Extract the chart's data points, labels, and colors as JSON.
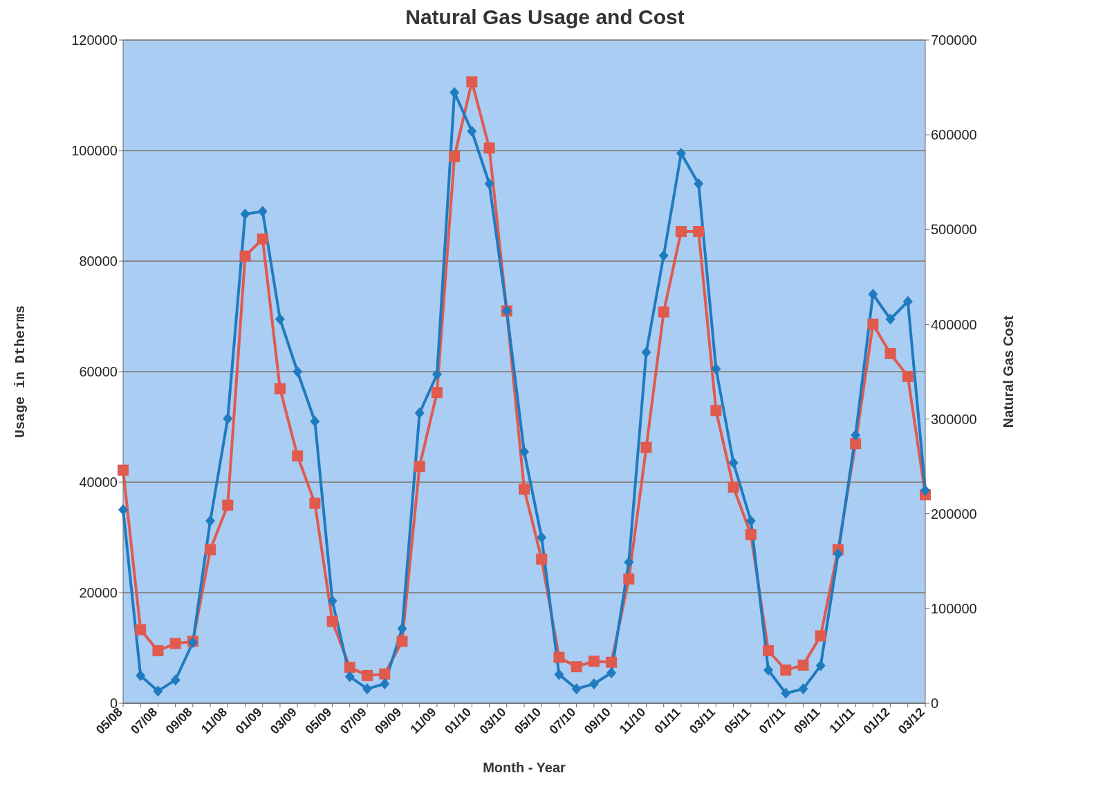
{
  "chart_data": {
    "type": "line",
    "title": "Natural Gas Usage and Cost",
    "xlabel": "Month - Year",
    "ylabel": "Usage in Dtherms",
    "y2label": "Natural Gas Cost",
    "categories": [
      "05/08",
      null,
      "07/08",
      null,
      "09/08",
      null,
      "11/08",
      null,
      "01/09",
      null,
      "03/09",
      null,
      "05/09",
      null,
      "07/09",
      null,
      "09/09",
      null,
      "11/09",
      null,
      "01/10",
      null,
      "03/10",
      null,
      "05/10",
      null,
      "07/10",
      null,
      "09/10",
      null,
      "11/10",
      null,
      "01/11",
      null,
      "03/11",
      null,
      "05/11",
      null,
      "07/11",
      null,
      "09/11",
      null,
      "11/11",
      null,
      "01/12",
      null,
      "03/12"
    ],
    "series": [
      {
        "color": "#1f7bbf",
        "marker": "diamond",
        "values": [
          35000,
          5000,
          2200,
          4200,
          11000,
          33000,
          51500,
          88500,
          89000,
          69500,
          60000,
          51000,
          18500,
          4800,
          2600,
          3500,
          13500,
          52500,
          59500,
          110500,
          103500,
          94000,
          71000,
          45500,
          30000,
          5200,
          2600,
          3500,
          5500,
          25500,
          63500,
          81000,
          99500,
          94000,
          60500,
          43500,
          33000,
          6000,
          1800,
          2600,
          6800,
          27000,
          48500,
          74000,
          69500,
          72700,
          38500
        ]
      },
      {
        "color": "#e05a4e",
        "marker": "square",
        "axis": "y2",
        "values": [
          246000,
          77600,
          55400,
          63000,
          65300,
          162000,
          209000,
          472000,
          490000,
          332000,
          261000,
          211000,
          86300,
          37900,
          29200,
          30900,
          65300,
          250000,
          328000,
          577000,
          656000,
          586000,
          414000,
          226000,
          152000,
          48400,
          38500,
          44300,
          43200,
          131000,
          270000,
          413000,
          498000,
          498000,
          309000,
          228000,
          178000,
          55400,
          35000,
          40200,
          71200,
          162000,
          274000,
          400000,
          369000,
          345000,
          220000
        ]
      }
    ],
    "ylim": [
      0,
      120000
    ],
    "yticks": [
      0,
      20000,
      40000,
      60000,
      80000,
      100000,
      120000
    ],
    "y2lim": [
      0,
      700000
    ],
    "y2ticks": [
      0,
      100000,
      200000,
      300000,
      400000,
      500000,
      600000,
      700000
    ],
    "grid": "y",
    "legend": false,
    "line_style": "solid"
  }
}
